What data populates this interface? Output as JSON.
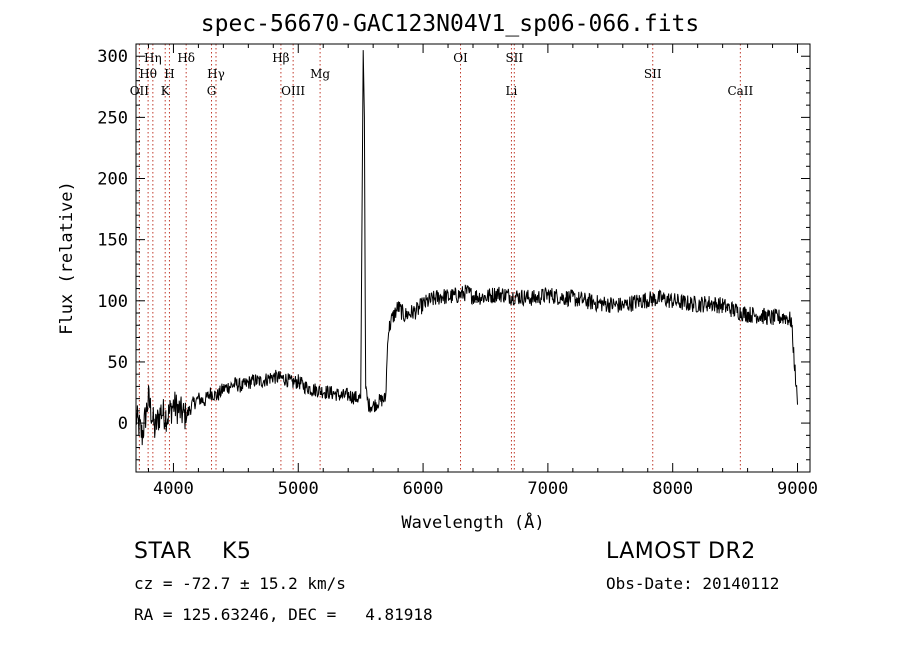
{
  "title": "spec-56670-GAC123N04V1_sp06-066.fits",
  "info": {
    "class_label": "STAR    K5",
    "survey": "LAMOST DR2",
    "cz": "cz = -72.7 ± 15.2 km/s",
    "obs_date": "Obs-Date: 20140112",
    "radec": "RA = 125.63246, DEC =   4.81918"
  },
  "chart_data": {
    "type": "line",
    "xlabel": "Wavelength (Å)",
    "ylabel": "Flux (relative)",
    "xlim": [
      3700,
      9100
    ],
    "ylim": [
      -40,
      310
    ],
    "xticks": [
      4000,
      5000,
      6000,
      7000,
      8000,
      9000
    ],
    "yticks": [
      0,
      50,
      100,
      150,
      200,
      250,
      300
    ],
    "xtick_labels": [
      "4000",
      "5000",
      "6000",
      "7000",
      "8000",
      "9000"
    ],
    "ytick_labels": [
      "0",
      "50",
      "100",
      "150",
      "200",
      "250",
      "300"
    ],
    "grid": false,
    "series": [
      {
        "x": [
          3700,
          3750,
          3800,
          3850,
          3900,
          3950,
          4000,
          4050,
          4100,
          4150,
          4200,
          4250,
          4300,
          4350,
          4400,
          4450,
          4500,
          4550,
          4600,
          4650,
          4700,
          4750,
          4800,
          4850,
          4900,
          4950,
          5000,
          5050,
          5100,
          5150,
          5200,
          5250,
          5300,
          5350,
          5400,
          5450,
          5500,
          5520,
          5530,
          5540,
          5560,
          5600,
          5650,
          5700,
          5720,
          5750,
          5800,
          5850,
          5900,
          5950,
          6000,
          6050,
          6100,
          6150,
          6200,
          6250,
          6300,
          6350,
          6400,
          6500,
          6600,
          6700,
          6800,
          6900,
          7000,
          7100,
          7200,
          7300,
          7400,
          7500,
          7600,
          7700,
          7800,
          7900,
          8000,
          8100,
          8200,
          8300,
          8400,
          8500,
          8600,
          8700,
          8800,
          8900,
          8950,
          9000
        ],
        "y": [
          5,
          -10,
          20,
          -5,
          10,
          5,
          15,
          10,
          5,
          15,
          20,
          18,
          25,
          22,
          28,
          30,
          32,
          30,
          33,
          35,
          34,
          36,
          38,
          37,
          36,
          33,
          34,
          30,
          28,
          27,
          26,
          25,
          24,
          22,
          23,
          21,
          20,
          305,
          250,
          28,
          15,
          14,
          18,
          20,
          75,
          85,
          95,
          88,
          90,
          92,
          97,
          100,
          102,
          104,
          103,
          104,
          105,
          107,
          104,
          103,
          106,
          104,
          103,
          102,
          105,
          103,
          102,
          100,
          98,
          97,
          96,
          99,
          101,
          102,
          100,
          98,
          97,
          98,
          96,
          92,
          89,
          88,
          86,
          87,
          84,
          15
        ]
      }
    ],
    "line_labels": [
      {
        "text": "Hη",
        "x": 3835,
        "row": 1
      },
      {
        "text": "Hθ",
        "x": 3797,
        "row": 2
      },
      {
        "text": "OII",
        "x": 3727,
        "row": 3
      },
      {
        "text": "H",
        "x": 3968,
        "row": 2
      },
      {
        "text": "K",
        "x": 3934,
        "row": 3
      },
      {
        "text": "Hδ",
        "x": 4102,
        "row": 1
      },
      {
        "text": "Hγ",
        "x": 4341,
        "row": 2
      },
      {
        "text": "G",
        "x": 4305,
        "row": 3
      },
      {
        "text": "Hβ",
        "x": 4861,
        "row": 1
      },
      {
        "text": "OIII",
        "x": 4959,
        "row": 3
      },
      {
        "text": "Mg",
        "x": 5175,
        "row": 2
      },
      {
        "text": "OI",
        "x": 6300,
        "row": 1
      },
      {
        "text": "SII",
        "x": 6731,
        "row": 1
      },
      {
        "text": "Li",
        "x": 6708,
        "row": 3
      },
      {
        "text": "SII",
        "x": 7840,
        "row": 2
      },
      {
        "text": "CaII",
        "x": 8542,
        "row": 3
      }
    ]
  }
}
